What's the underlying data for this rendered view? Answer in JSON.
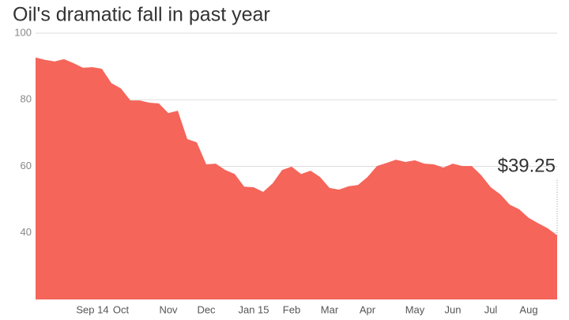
{
  "chart_data": {
    "type": "area",
    "title": "Oil's dramatic fall in past year",
    "categories": [
      null,
      null,
      null,
      null,
      null,
      null,
      "Sep 14",
      null,
      null,
      "Oct",
      null,
      null,
      null,
      null,
      "Nov",
      null,
      null,
      null,
      "Dec",
      null,
      null,
      null,
      null,
      "Jan 15",
      null,
      null,
      null,
      "Feb",
      null,
      null,
      null,
      "Mar",
      null,
      null,
      null,
      "Apr",
      null,
      null,
      null,
      null,
      "May",
      null,
      null,
      null,
      "Jun",
      null,
      null,
      null,
      "Jul",
      null,
      null,
      null,
      "Aug",
      null,
      null,
      null
    ],
    "values": [
      92.7,
      92,
      91.5,
      92.2,
      91,
      89.6,
      89.8,
      89.3,
      85,
      83.4,
      79.8,
      79.8,
      79.1,
      78.9,
      76,
      76.7,
      68.2,
      67.2,
      60.6,
      60.8,
      58.9,
      57.7,
      53.9,
      53.7,
      52.3,
      54.9,
      58.9,
      59.9,
      57.7,
      58.7,
      56.8,
      53.5,
      53,
      54,
      54.4,
      56.8,
      60.1,
      61,
      62,
      61.3,
      61.8,
      60.8,
      60.6,
      59.6,
      60.8,
      60.1,
      60.1,
      57.3,
      53.7,
      51.6,
      48.5,
      47.1,
      44.5,
      42.9,
      41.4,
      39.25
    ],
    "value_labels": [
      null,
      null,
      null,
      null,
      null,
      null,
      null,
      null,
      null,
      null,
      null,
      null,
      null,
      null,
      null,
      null,
      null,
      null,
      null,
      null,
      null,
      null,
      null,
      null,
      null,
      null,
      null,
      null,
      null,
      null,
      null,
      null,
      null,
      null,
      null,
      null,
      null,
      null,
      null,
      null,
      null,
      null,
      null,
      null,
      null,
      null,
      null,
      null,
      null,
      null,
      null,
      null,
      null,
      null,
      null,
      "$39.25"
    ],
    "color": "#f5655a",
    "ylim": [
      20,
      100
    ],
    "yticks": [
      40,
      60,
      80,
      100
    ],
    "grid": true
  }
}
